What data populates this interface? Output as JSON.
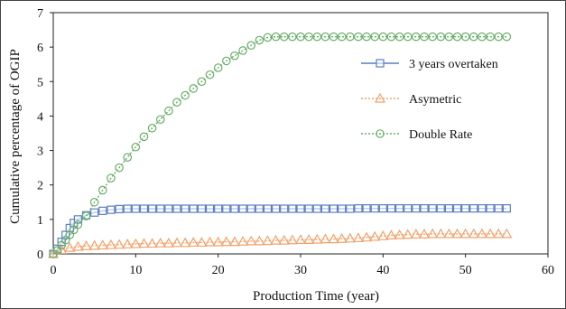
{
  "chart_data": {
    "type": "line",
    "title": "",
    "xlabel": "Production Time (year)",
    "ylabel": "Cumulative percentage of OGIP",
    "xlim": [
      0,
      60
    ],
    "ylim": [
      0,
      7
    ],
    "xticks": [
      "0",
      "10",
      "20",
      "30",
      "40",
      "50",
      "60"
    ],
    "yticks": [
      "0",
      "1",
      "2",
      "3",
      "4",
      "5",
      "6",
      "7"
    ],
    "grid": false,
    "legend_position": "top-right",
    "series": [
      {
        "name": "3 years overtaken",
        "color": "#5b7fc4",
        "marker": "square",
        "x": [
          0,
          0.5,
          1,
          1.5,
          2,
          2.5,
          3,
          4,
          5,
          6,
          7,
          8,
          9,
          10,
          11,
          12,
          13,
          14,
          15,
          16,
          17,
          18,
          19,
          20,
          21,
          22,
          23,
          24,
          25,
          26,
          27,
          28,
          29,
          30,
          31,
          32,
          33,
          34,
          35,
          36,
          37,
          38,
          39,
          40,
          41,
          42,
          43,
          44,
          45,
          46,
          47,
          48,
          49,
          50,
          51,
          52,
          53,
          54,
          55
        ],
        "y": [
          0,
          0.15,
          0.35,
          0.55,
          0.75,
          0.9,
          1.0,
          1.12,
          1.2,
          1.25,
          1.28,
          1.3,
          1.31,
          1.31,
          1.31,
          1.31,
          1.31,
          1.31,
          1.31,
          1.31,
          1.31,
          1.31,
          1.31,
          1.31,
          1.31,
          1.31,
          1.31,
          1.31,
          1.31,
          1.31,
          1.31,
          1.31,
          1.31,
          1.31,
          1.31,
          1.31,
          1.31,
          1.31,
          1.31,
          1.31,
          1.32,
          1.32,
          1.32,
          1.32,
          1.32,
          1.32,
          1.32,
          1.32,
          1.32,
          1.32,
          1.32,
          1.32,
          1.32,
          1.32,
          1.32,
          1.32,
          1.32,
          1.32,
          1.32
        ]
      },
      {
        "name": "Asymetric",
        "color": "#f2a26b",
        "marker": "triangle",
        "x": [
          0,
          1,
          2,
          3,
          4,
          5,
          6,
          7,
          8,
          9,
          10,
          11,
          12,
          13,
          14,
          15,
          16,
          17,
          18,
          19,
          20,
          21,
          22,
          23,
          24,
          25,
          26,
          27,
          28,
          29,
          30,
          31,
          32,
          33,
          34,
          35,
          36,
          37,
          38,
          39,
          40,
          41,
          42,
          43,
          44,
          45,
          46,
          47,
          48,
          49,
          50,
          51,
          52,
          53,
          54,
          55
        ],
        "y": [
          0,
          0.12,
          0.18,
          0.21,
          0.23,
          0.24,
          0.25,
          0.26,
          0.27,
          0.28,
          0.29,
          0.3,
          0.3,
          0.31,
          0.31,
          0.32,
          0.32,
          0.33,
          0.33,
          0.34,
          0.34,
          0.35,
          0.35,
          0.36,
          0.37,
          0.37,
          0.38,
          0.39,
          0.39,
          0.4,
          0.41,
          0.41,
          0.42,
          0.43,
          0.43,
          0.44,
          0.45,
          0.46,
          0.48,
          0.5,
          0.52,
          0.54,
          0.55,
          0.56,
          0.57,
          0.57,
          0.58,
          0.58,
          0.58,
          0.58,
          0.58,
          0.58,
          0.58,
          0.58,
          0.58,
          0.58
        ]
      },
      {
        "name": "Double Rate",
        "color": "#6aae6a",
        "marker": "circle",
        "x": [
          0,
          0.5,
          1,
          1.5,
          2,
          2.5,
          3,
          4,
          5,
          6,
          7,
          8,
          9,
          10,
          11,
          12,
          13,
          14,
          15,
          16,
          17,
          18,
          19,
          20,
          21,
          22,
          23,
          24,
          25,
          26,
          27,
          28,
          29,
          30,
          31,
          32,
          33,
          34,
          35,
          36,
          37,
          38,
          39,
          40,
          41,
          42,
          43,
          44,
          45,
          46,
          47,
          48,
          49,
          50,
          51,
          52,
          53,
          54,
          55
        ],
        "y": [
          0,
          0.1,
          0.25,
          0.4,
          0.55,
          0.7,
          0.85,
          1.1,
          1.5,
          1.85,
          2.2,
          2.5,
          2.8,
          3.1,
          3.4,
          3.65,
          3.9,
          4.15,
          4.4,
          4.6,
          4.8,
          5.0,
          5.2,
          5.4,
          5.6,
          5.75,
          5.9,
          6.05,
          6.2,
          6.28,
          6.3,
          6.3,
          6.3,
          6.3,
          6.3,
          6.3,
          6.3,
          6.3,
          6.3,
          6.3,
          6.3,
          6.3,
          6.3,
          6.3,
          6.3,
          6.3,
          6.3,
          6.3,
          6.3,
          6.3,
          6.3,
          6.3,
          6.3,
          6.3,
          6.3,
          6.3,
          6.3,
          6.3,
          6.3
        ]
      }
    ]
  }
}
